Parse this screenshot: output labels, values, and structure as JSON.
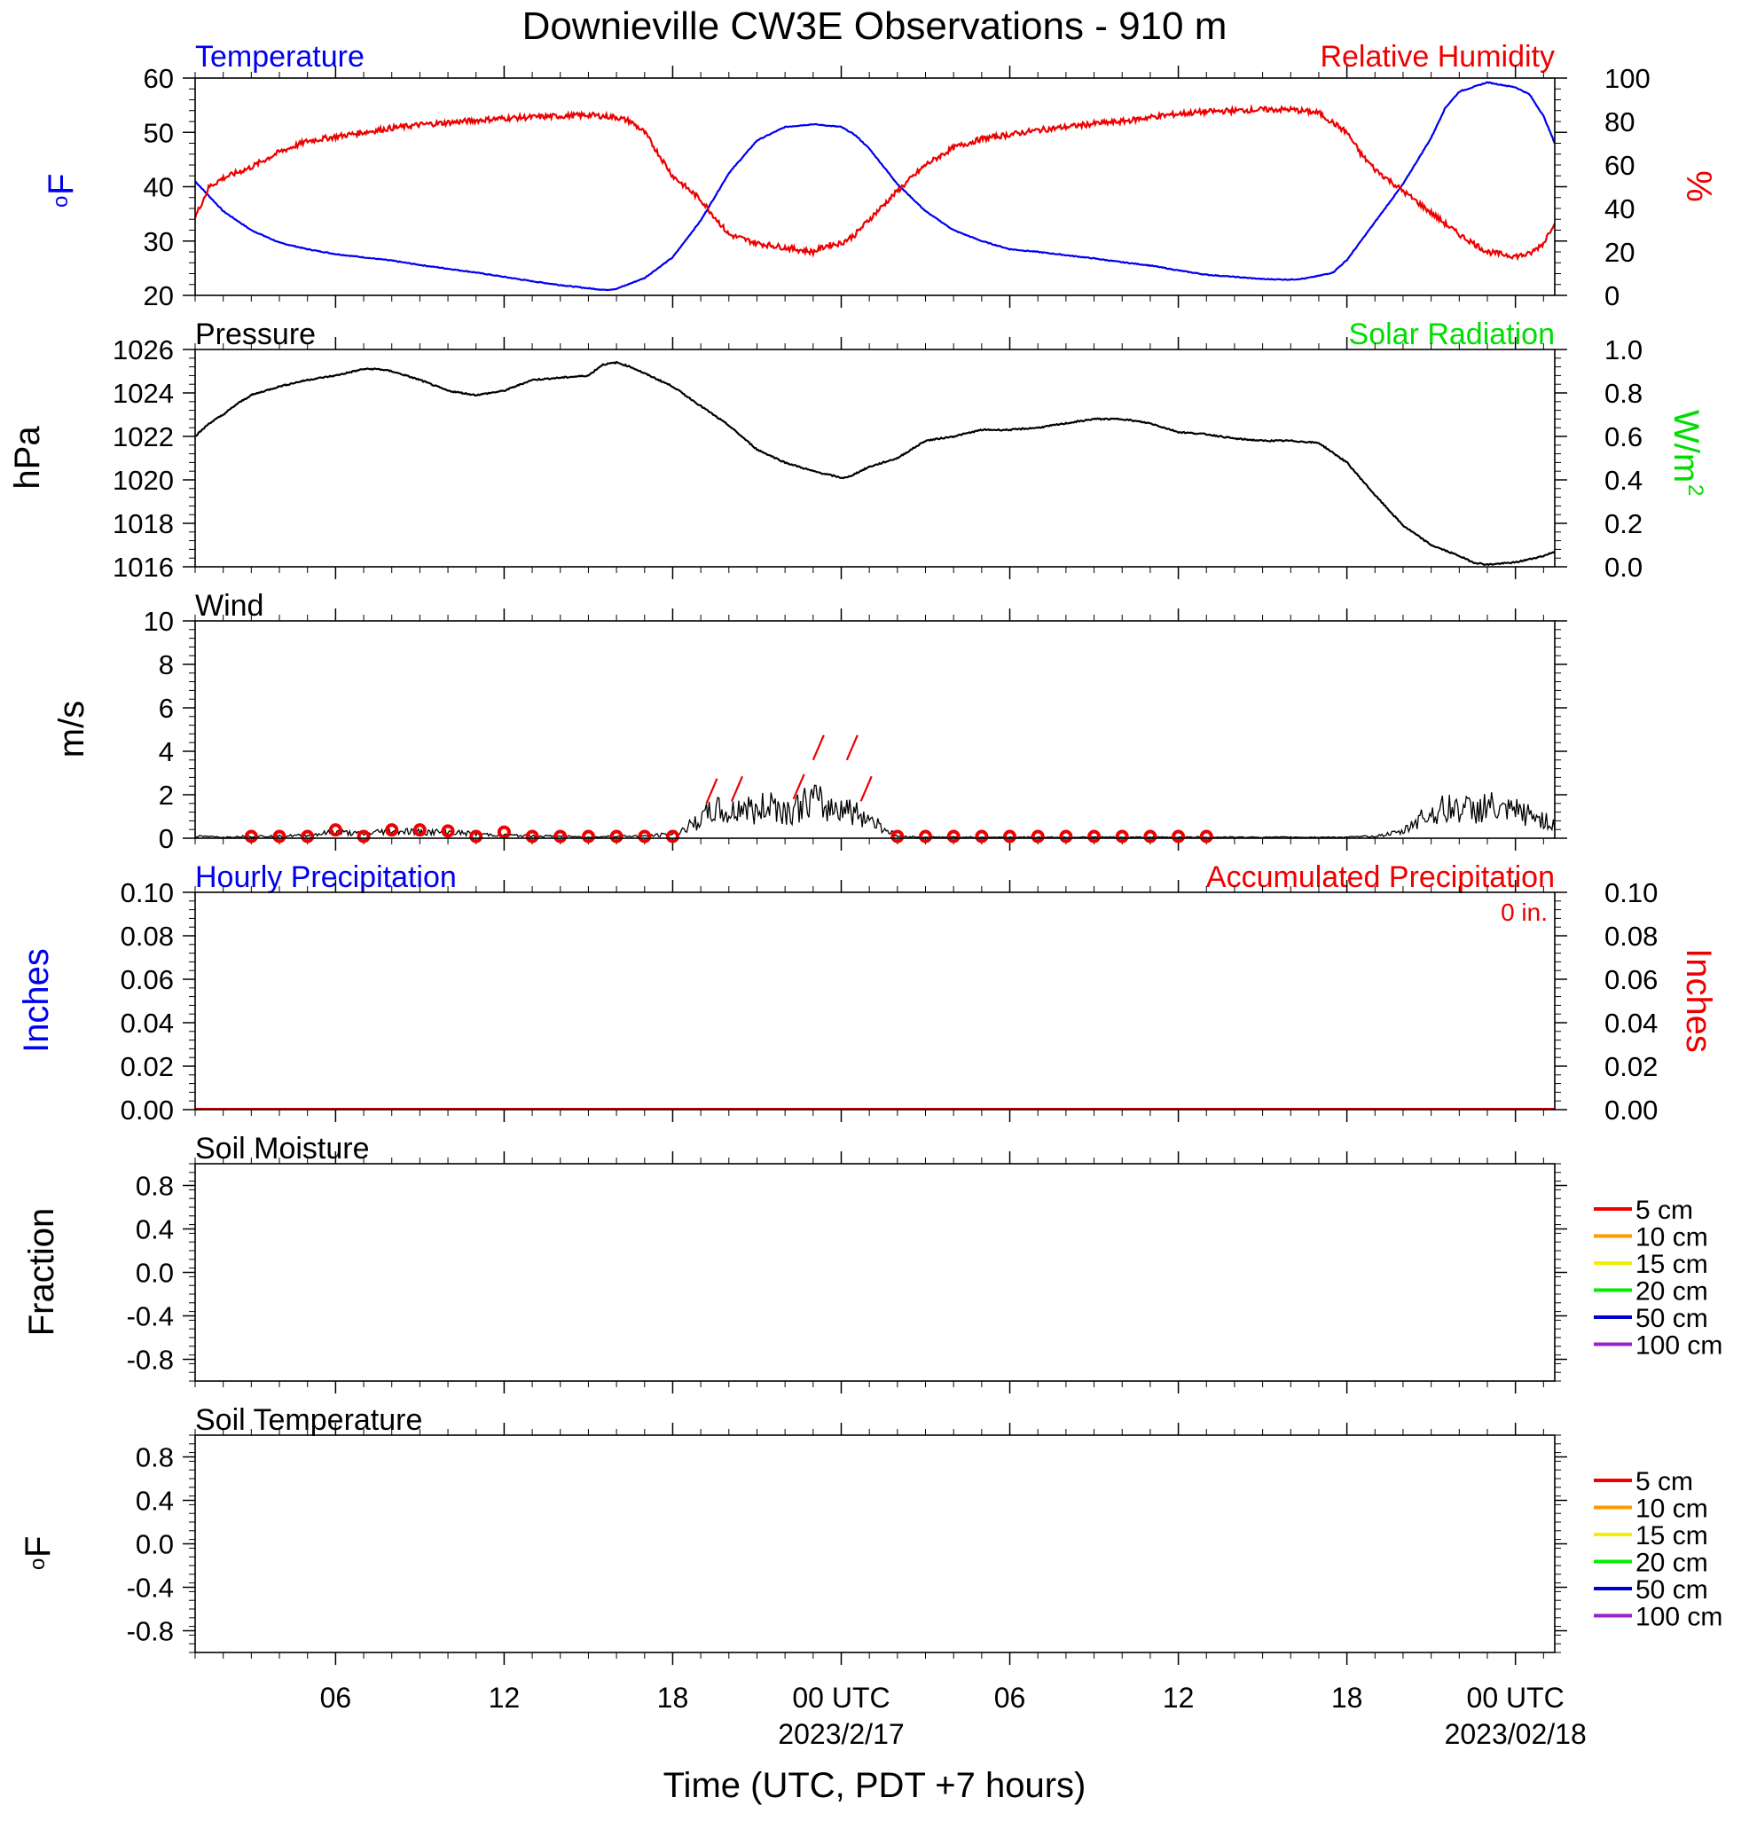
{
  "title": "Downieville CW3E Observations - 910 m",
  "xlabel": "Time (UTC, PDT +7 hours)",
  "x_ticks": [
    {
      "hour": 6,
      "label": "06",
      "date": ""
    },
    {
      "hour": 12,
      "label": "12",
      "date": ""
    },
    {
      "hour": 18,
      "label": "18",
      "date": ""
    },
    {
      "hour": 24,
      "label": "00 UTC",
      "date": "2023/2/17"
    },
    {
      "hour": 30,
      "label": "06",
      "date": ""
    },
    {
      "hour": 36,
      "label": "12",
      "date": ""
    },
    {
      "hour": 42,
      "label": "18",
      "date": ""
    },
    {
      "hour": 48,
      "label": "00 UTC",
      "date": "2023/02/18"
    }
  ],
  "colors": {
    "blue": "#0000ee",
    "red": "#ee0000",
    "green": "#00dd00",
    "black": "#000000"
  },
  "soil_legend": [
    {
      "label": "5 cm",
      "color": "#ee0000"
    },
    {
      "label": "10 cm",
      "color": "#ff9900"
    },
    {
      "label": "15 cm",
      "color": "#f0f000"
    },
    {
      "label": "20 cm",
      "color": "#00ee00"
    },
    {
      "label": "50 cm",
      "color": "#0000cc"
    },
    {
      "label": "100 cm",
      "color": "#9922cc"
    }
  ],
  "chart_data": [
    {
      "type": "line",
      "panel": "temperature_humidity",
      "left_label": "Temperature",
      "right_label": "Relative Humidity",
      "ylabel_left_sup": "o",
      "ylabel_left": "F",
      "ylabel_right": "%",
      "ylim_left": [
        20,
        60
      ],
      "yticks_left": [
        "60",
        "50",
        "40",
        "30",
        "20"
      ],
      "ylim_right": [
        0,
        100
      ],
      "yticks_right": [
        "100",
        "80",
        "60",
        "40",
        "20",
        "0"
      ],
      "xlim_hours": [
        1,
        49.4
      ],
      "series": [
        {
          "name": "Temperature",
          "color": "#0000ee",
          "axis": "left",
          "x": [
            1,
            2,
            3,
            4,
            5,
            6,
            7,
            8,
            9,
            10,
            11,
            12,
            13,
            14,
            15,
            15.6,
            16,
            17,
            18,
            19,
            20,
            21,
            22,
            23,
            24,
            24.5,
            25,
            26,
            27,
            28,
            29,
            30,
            31,
            32,
            33,
            34,
            35,
            36,
            37,
            38,
            39,
            40,
            40.5,
            41,
            41.5,
            42,
            43,
            44,
            45,
            45.5,
            46,
            47,
            48,
            48.5,
            49,
            49.4
          ],
          "y": [
            41,
            35.5,
            32,
            29.7,
            28.5,
            27.6,
            27,
            26.4,
            25.6,
            24.9,
            24.2,
            23.4,
            22.6,
            21.9,
            21.3,
            21.0,
            21.2,
            23.2,
            27,
            33.8,
            42.5,
            48.5,
            51,
            51.5,
            51,
            49.5,
            47,
            40.5,
            35.5,
            32,
            30,
            28.5,
            28,
            27.4,
            26.8,
            26.1,
            25.5,
            24.6,
            23.8,
            23.4,
            23,
            22.9,
            23.1,
            23.6,
            24.2,
            26.5,
            33.5,
            40.5,
            49,
            54.5,
            57.5,
            59.2,
            58.3,
            57,
            53,
            48
          ]
        },
        {
          "name": "Relative Humidity",
          "color": "#ee0000",
          "axis": "right",
          "x": [
            1,
            1.5,
            2,
            3,
            4,
            5,
            6,
            7,
            8,
            9,
            10,
            11,
            12,
            13,
            14,
            15,
            16,
            16.5,
            17,
            18,
            19,
            20,
            21,
            22,
            23,
            23.5,
            24,
            24.5,
            25,
            26,
            27,
            28,
            29,
            30,
            31,
            32,
            33,
            34,
            35,
            36,
            37,
            38,
            39,
            40,
            41,
            42,
            42.5,
            43,
            44,
            45,
            46,
            47,
            48,
            48.5,
            49,
            49.4
          ],
          "y": [
            36,
            50,
            54,
            59,
            66,
            71,
            73,
            75,
            77,
            78.5,
            79.5,
            80.5,
            81.5,
            82,
            82.5,
            83,
            82,
            80,
            75,
            55,
            44,
            28,
            24,
            22,
            20,
            23,
            24,
            28,
            35,
            48,
            60,
            68,
            72,
            74,
            76,
            77.5,
            79,
            80,
            82,
            83.5,
            84.5,
            85,
            85.5,
            85.5,
            84,
            75,
            65,
            58,
            48,
            38,
            28,
            20,
            18,
            19,
            24,
            34
          ]
        }
      ]
    },
    {
      "type": "line",
      "panel": "pressure_solar",
      "left_label": "Pressure",
      "right_label": "Solar Radiation",
      "ylabel_left": "hPa",
      "ylabel_right": "W/m",
      "ylabel_right_sup": "2",
      "ylim_left": [
        1016,
        1026
      ],
      "yticks_left": [
        "1026",
        "1024",
        "1022",
        "1020",
        "1018",
        "1016"
      ],
      "ylim_right": [
        0,
        1
      ],
      "yticks_right": [
        "1.0",
        "0.8",
        "0.6",
        "0.4",
        "0.2",
        "0.0"
      ],
      "xlim_hours": [
        1,
        49.4
      ],
      "series": [
        {
          "name": "Pressure",
          "color": "#000000",
          "axis": "left",
          "x": [
            1,
            1.5,
            2,
            2.5,
            3,
            4,
            5,
            6,
            7,
            7.5,
            8,
            9,
            10,
            11,
            12,
            13,
            14,
            15,
            15.5,
            16,
            16.5,
            17,
            18,
            19,
            20,
            21,
            22,
            23,
            24,
            24.2,
            25,
            26,
            27,
            28,
            29,
            30,
            31,
            32,
            33,
            34,
            35,
            36,
            37,
            38,
            39,
            40,
            41,
            42,
            43,
            44,
            45,
            46,
            46.5,
            47,
            48,
            49,
            49.4
          ],
          "y": [
            1022,
            1022.6,
            1023,
            1023.5,
            1023.9,
            1024.3,
            1024.6,
            1024.8,
            1025.1,
            1025.1,
            1025,
            1024.6,
            1024.1,
            1023.9,
            1024.1,
            1024.6,
            1024.7,
            1024.8,
            1025.3,
            1025.4,
            1025.2,
            1024.9,
            1024.3,
            1023.4,
            1022.5,
            1021.4,
            1020.8,
            1020.4,
            1020.1,
            1020.1,
            1020.6,
            1021.0,
            1021.8,
            1022.0,
            1022.3,
            1022.3,
            1022.4,
            1022.6,
            1022.8,
            1022.8,
            1022.6,
            1022.2,
            1022.1,
            1021.9,
            1021.8,
            1021.8,
            1021.7,
            1020.8,
            1019.3,
            1017.9,
            1017.0,
            1016.5,
            1016.2,
            1016.1,
            1016.2,
            1016.5,
            1016.7
          ]
        }
      ]
    },
    {
      "type": "line",
      "panel": "wind",
      "left_label": "Wind",
      "ylabel_left": "m/s",
      "ylim_left": [
        0,
        10
      ],
      "yticks_left": [
        "10",
        "8",
        "6",
        "4",
        "2",
        "0"
      ],
      "xlim_hours": [
        1,
        49.4
      ],
      "series": [
        {
          "name": "Wind",
          "color": "#000000",
          "axis": "left",
          "x": [
            1,
            2,
            3,
            4,
            5,
            6,
            7,
            8,
            9,
            10,
            11,
            12,
            13,
            14,
            15,
            16,
            17,
            18,
            18.5,
            19,
            19.5,
            20,
            20.5,
            21,
            21.5,
            22,
            22.5,
            23,
            23.5,
            24,
            24.5,
            25,
            25.5,
            26,
            27,
            28,
            29,
            30,
            31,
            32,
            33,
            34,
            35,
            36,
            37,
            38,
            39,
            40,
            41,
            42,
            43,
            44,
            44.5,
            45,
            45.5,
            46,
            46.5,
            47,
            47.5,
            48,
            48.5,
            49,
            49.4
          ],
          "y": [
            0.1,
            0.05,
            0.1,
            0.1,
            0.15,
            0.3,
            0.2,
            0.4,
            0.3,
            0.3,
            0.2,
            0.15,
            0.1,
            0.1,
            0.05,
            0.1,
            0.1,
            0.2,
            0.5,
            0.9,
            1.4,
            1.1,
            1.6,
            1.2,
            1.8,
            1.3,
            1.5,
            1.9,
            1.4,
            1.6,
            1.2,
            1.0,
            0.5,
            0.1,
            0.05,
            0.05,
            0.05,
            0.05,
            0.05,
            0.05,
            0.05,
            0.05,
            0.05,
            0.05,
            0.05,
            0.05,
            0.05,
            0.05,
            0.05,
            0.05,
            0.1,
            0.3,
            0.9,
            1.2,
            1.4,
            1.5,
            1.3,
            1.6,
            1.2,
            1.3,
            1.1,
            0.9,
            0.6
          ]
        }
      ],
      "station_circles_hours": [
        3,
        4,
        5,
        6,
        7,
        8,
        9,
        10,
        11,
        12,
        13,
        14,
        15,
        16,
        17,
        18,
        26,
        27,
        28,
        29,
        30,
        31,
        32,
        33,
        34,
        35,
        36,
        37
      ],
      "station_circles_values": [
        0,
        0,
        0,
        0.3,
        0,
        0.3,
        0.3,
        0.25,
        0,
        0.2,
        0,
        0,
        0,
        0,
        0,
        0,
        0,
        0,
        0,
        0,
        0,
        0,
        0,
        0,
        0,
        0,
        0,
        0
      ],
      "wind_barbs": [
        {
          "hour": 19.2,
          "speed": 1.6
        },
        {
          "hour": 20.1,
          "speed": 1.7
        },
        {
          "hour": 22.3,
          "speed": 1.8
        },
        {
          "hour": 23.0,
          "speed": 3.6
        },
        {
          "hour": 24.2,
          "speed": 3.6
        },
        {
          "hour": 24.7,
          "speed": 1.7
        }
      ]
    },
    {
      "type": "bar",
      "panel": "precipitation",
      "left_label": "Hourly Precipitation",
      "right_label": "Accumulated Precipitation",
      "annotation": "0 in.",
      "ylabel_left": "Inches",
      "ylabel_right": "Inches",
      "ylim_left": [
        0,
        0.1
      ],
      "yticks_left": [
        "0.10",
        "0.08",
        "0.06",
        "0.04",
        "0.02",
        "0.00"
      ],
      "ylim_right": [
        0,
        0.1
      ],
      "yticks_right": [
        "0.10",
        "0.08",
        "0.06",
        "0.04",
        "0.02",
        "0.00"
      ],
      "xlim_hours": [
        1,
        49.4
      ],
      "series": [
        {
          "name": "Hourly Precipitation",
          "color": "#0000ee",
          "values": [
            0
          ]
        },
        {
          "name": "Accumulated Precipitation",
          "color": "#ee0000",
          "values": [
            0
          ]
        }
      ]
    },
    {
      "type": "line",
      "panel": "soil_moisture",
      "left_label": "Soil Moisture",
      "ylabel_left": "Fraction",
      "ylim_left": [
        -1,
        1
      ],
      "yticks_left": [
        "0.8",
        "0.4",
        "0.0",
        "-0.4",
        "-0.8"
      ],
      "xlim_hours": [
        1,
        49.4
      ],
      "series": []
    },
    {
      "type": "line",
      "panel": "soil_temperature",
      "left_label": "Soil Temperature",
      "ylabel_left_sup": "o",
      "ylabel_left": "F",
      "ylim_left": [
        -1,
        1
      ],
      "yticks_left": [
        "0.8",
        "0.4",
        "0.0",
        "-0.4",
        "-0.8"
      ],
      "xlim_hours": [
        1,
        49.4
      ],
      "series": []
    }
  ]
}
